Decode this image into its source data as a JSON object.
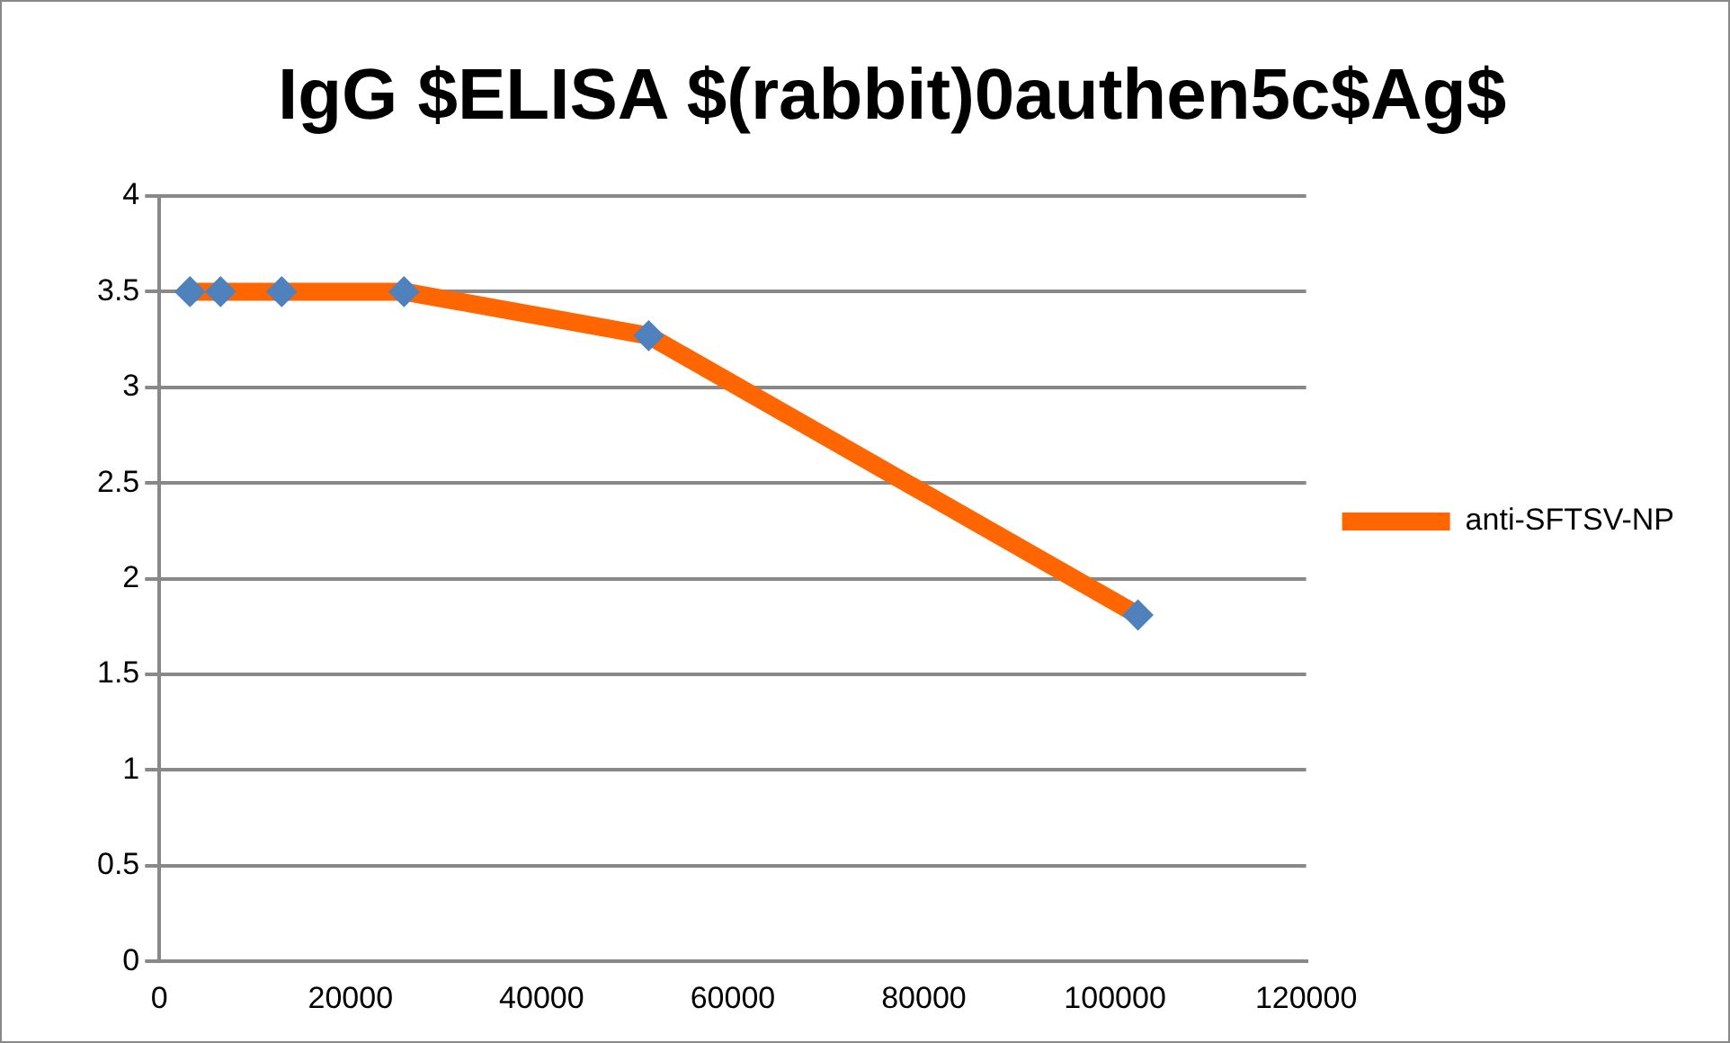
{
  "chart_data": {
    "type": "line",
    "title": "IgG $ELISA $(rabbit)0authen5c$Ag$",
    "x": [
      3200,
      6400,
      12800,
      25600,
      51200,
      102400
    ],
    "series": [
      {
        "name": "anti-SFTSV-NP",
        "color": "#ff6600",
        "colors": [
          "#4f81bd",
          "#4f81bd",
          "#4f81bd",
          "#4f81bd",
          "#4f81bd",
          "#4f81bd"
        ],
        "values": [
          3.5,
          3.5,
          3.5,
          3.5,
          3.27,
          1.81
        ]
      }
    ],
    "xlim": [
      0,
      120000
    ],
    "xticks": [
      0,
      20000,
      40000,
      60000,
      80000,
      100000,
      120000
    ],
    "ylim": [
      0,
      4
    ],
    "yticks": [
      0,
      0.5,
      1,
      1.5,
      2,
      2.5,
      3,
      3.5,
      4
    ],
    "grid": "y",
    "legend": "right",
    "marker": "diamond",
    "line_style": "solid"
  }
}
